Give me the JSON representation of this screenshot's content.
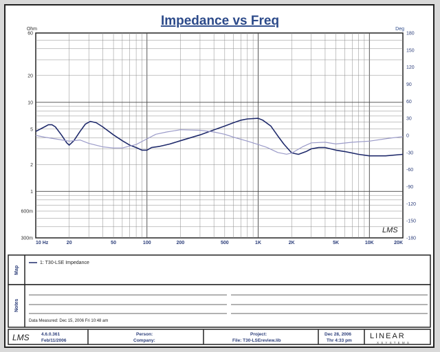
{
  "chart_data": {
    "type": "line",
    "title": "Impedance vs Freq",
    "left_unit": "Ohm",
    "right_unit": "Deg",
    "x_scale": "log",
    "xlim": [
      10,
      20000
    ],
    "y_left_scale": "log",
    "y_left_lim": [
      0.3,
      60
    ],
    "y_right_lim": [
      -180,
      180
    ],
    "x_ticks": [
      {
        "v": 10,
        "label": "10 Hz"
      },
      {
        "v": 20,
        "label": "20"
      },
      {
        "v": 50,
        "label": "50"
      },
      {
        "v": 100,
        "label": "100"
      },
      {
        "v": 200,
        "label": "200"
      },
      {
        "v": 500,
        "label": "500"
      },
      {
        "v": 1000,
        "label": "1K"
      },
      {
        "v": 2000,
        "label": "2K"
      },
      {
        "v": 5000,
        "label": "5K"
      },
      {
        "v": 10000,
        "label": "10K"
      },
      {
        "v": 20000,
        "label": "20K"
      }
    ],
    "y_left_ticks": [
      {
        "v": 60,
        "label": "60"
      },
      {
        "v": 20,
        "label": "20"
      },
      {
        "v": 10,
        "label": "10"
      },
      {
        "v": 5,
        "label": "5"
      },
      {
        "v": 2,
        "label": "2"
      },
      {
        "v": 1,
        "label": "1"
      },
      {
        "v": 0.6,
        "label": "600m"
      },
      {
        "v": 0.3,
        "label": "300m"
      }
    ],
    "y_right_ticks": [
      180,
      150,
      120,
      90,
      60,
      30,
      0,
      -30,
      -60,
      -90,
      -120,
      -150,
      -180
    ],
    "grid": true,
    "series": [
      {
        "name": "1: T30-LSE Impedance",
        "axis": "left",
        "color": "#1f2a6b",
        "points": [
          [
            10,
            4.7
          ],
          [
            12,
            5.3
          ],
          [
            13,
            5.6
          ],
          [
            14,
            5.6
          ],
          [
            15,
            5.3
          ],
          [
            17,
            4.3
          ],
          [
            19,
            3.5
          ],
          [
            20,
            3.3
          ],
          [
            22,
            3.7
          ],
          [
            25,
            4.7
          ],
          [
            28,
            5.7
          ],
          [
            31,
            6.1
          ],
          [
            35,
            5.9
          ],
          [
            40,
            5.3
          ],
          [
            50,
            4.3
          ],
          [
            60,
            3.7
          ],
          [
            70,
            3.3
          ],
          [
            80,
            3.1
          ],
          [
            90,
            2.9
          ],
          [
            100,
            2.9
          ],
          [
            110,
            3.1
          ],
          [
            130,
            3.2
          ],
          [
            160,
            3.4
          ],
          [
            200,
            3.7
          ],
          [
            300,
            4.3
          ],
          [
            400,
            4.9
          ],
          [
            500,
            5.4
          ],
          [
            600,
            5.9
          ],
          [
            700,
            6.3
          ],
          [
            800,
            6.5
          ],
          [
            1000,
            6.6
          ],
          [
            1100,
            6.3
          ],
          [
            1300,
            5.4
          ],
          [
            1500,
            4.2
          ],
          [
            1700,
            3.4
          ],
          [
            2000,
            2.7
          ],
          [
            2300,
            2.6
          ],
          [
            2700,
            2.8
          ],
          [
            3000,
            3.0
          ],
          [
            3500,
            3.1
          ],
          [
            4000,
            3.1
          ],
          [
            5000,
            2.9
          ],
          [
            6000,
            2.8
          ],
          [
            8000,
            2.6
          ],
          [
            10000,
            2.5
          ],
          [
            14000,
            2.5
          ],
          [
            20000,
            2.6
          ]
        ]
      },
      {
        "name": "",
        "axis": "right",
        "color": "#9a9ac8",
        "points": [
          [
            10,
            0
          ],
          [
            12,
            -3
          ],
          [
            15,
            -6
          ],
          [
            20,
            -10
          ],
          [
            25,
            -8
          ],
          [
            30,
            -14
          ],
          [
            40,
            -20
          ],
          [
            50,
            -22
          ],
          [
            60,
            -22
          ],
          [
            80,
            -16
          ],
          [
            100,
            -6
          ],
          [
            120,
            2
          ],
          [
            150,
            6
          ],
          [
            200,
            10
          ],
          [
            300,
            9
          ],
          [
            400,
            6
          ],
          [
            500,
            2
          ],
          [
            600,
            -3
          ],
          [
            800,
            -10
          ],
          [
            1000,
            -16
          ],
          [
            1200,
            -21
          ],
          [
            1500,
            -30
          ],
          [
            1800,
            -33
          ],
          [
            2000,
            -31
          ],
          [
            2500,
            -20
          ],
          [
            3000,
            -13
          ],
          [
            4000,
            -12
          ],
          [
            5000,
            -15
          ],
          [
            7000,
            -12
          ],
          [
            10000,
            -10
          ],
          [
            15000,
            -5
          ],
          [
            20000,
            -2
          ]
        ]
      }
    ]
  },
  "legend_panel": {
    "label": "Map",
    "entries": [
      {
        "text": "1: T30-LSE Impedance",
        "color": "#1f2a6b"
      }
    ]
  },
  "notes_panel": {
    "label": "Notes",
    "data_measured": "Data Measured: Dec 15, 2006  Fri 10:48 am"
  },
  "footer": {
    "logo": "LMS",
    "version": "4.6.0.361",
    "version_date": "Feb/11/2006",
    "person_label": "Person:",
    "company_label": "Company:",
    "project_label": "Project:",
    "file_label": "File: T30-LSEreview.lib",
    "date": "Dec 28, 2006",
    "day_time": "Thr  4:33 pm",
    "brand_top": "LINEAR",
    "brand_bottom": "X  S Y S T E M S"
  },
  "plot_watermark": "LMS"
}
